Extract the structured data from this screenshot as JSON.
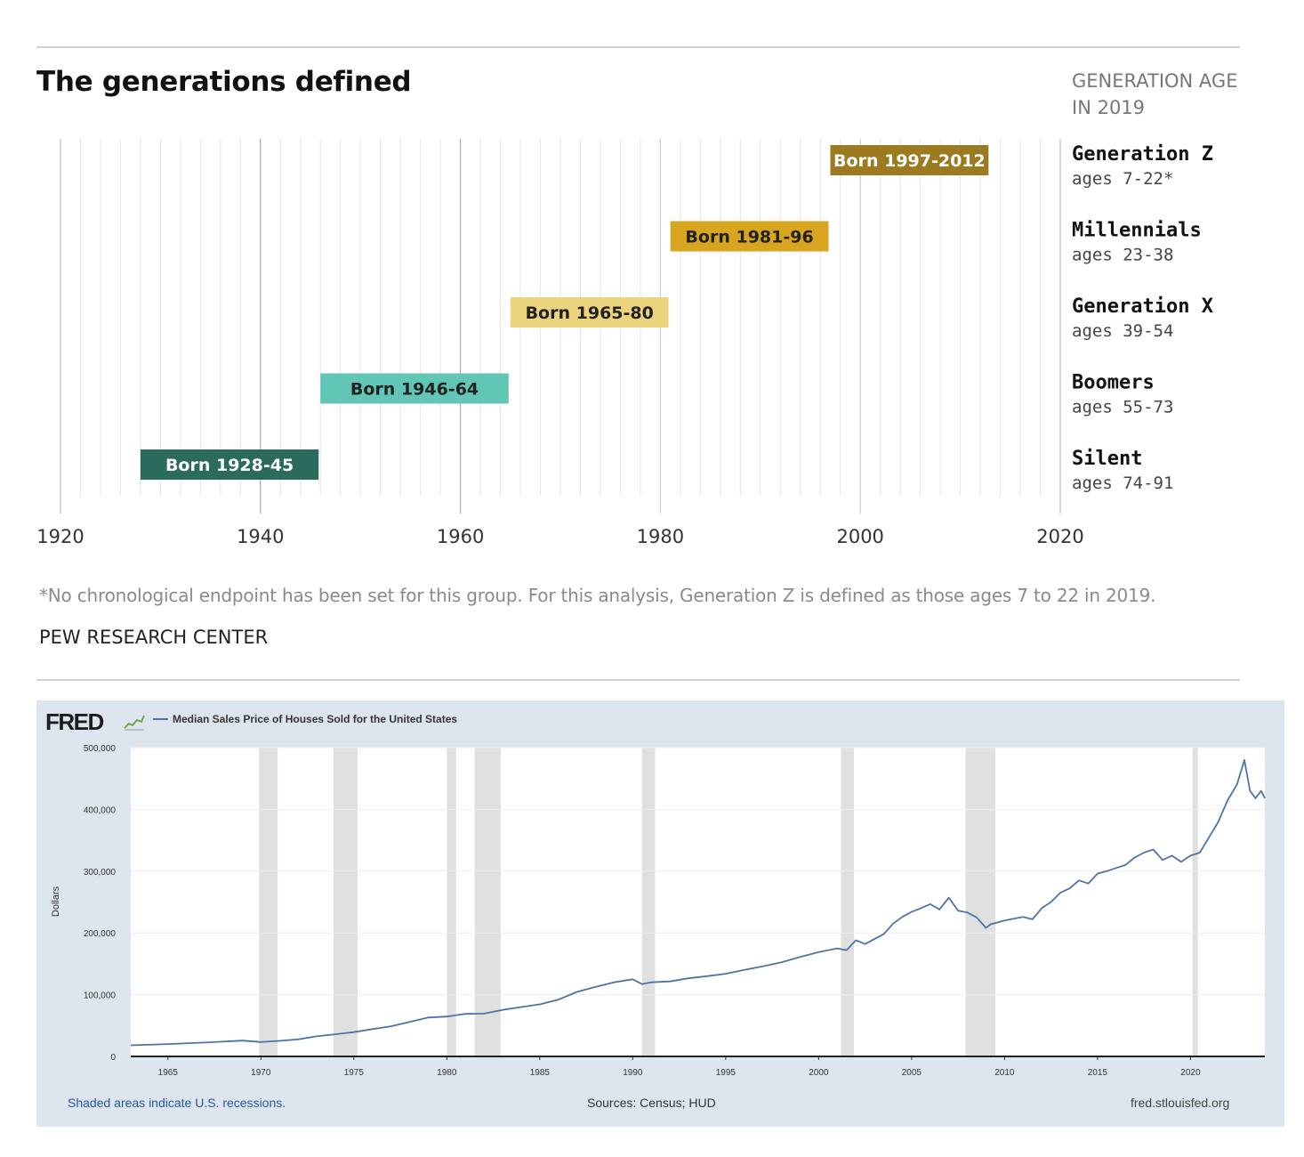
{
  "pew": {
    "title": "The generations defined",
    "age_heading": "GENERATION AGE\nIN 2019",
    "note": "*No chronological endpoint has been set for this group. For this analysis, Generation Z is defined as those ages 7 to 22 in 2019.",
    "source": "PEW RESEARCH CENTER"
  },
  "fred": {
    "logo": "FRED",
    "legend": "Median Sales Price of Houses Sold for the United States",
    "ylabel": "Dollars",
    "footer_left": "Shaded areas indicate U.S. recessions.",
    "footer_center": "Sources: Census; HUD",
    "footer_right": "fred.stlouisfed.org",
    "colors": {
      "panel": "#dde6ee",
      "line": "#4e74a6",
      "recession": "#e0e0e0",
      "link": "#25579e"
    }
  },
  "chart_data": [
    {
      "type": "bar",
      "orientation": "horizontal-range",
      "title": "The generations defined",
      "xlim": [
        1920,
        2020
      ],
      "x_ticks": [
        1920,
        1940,
        1960,
        1980,
        2000,
        2020
      ],
      "grid": true,
      "series": [
        {
          "generation": "Generation Z",
          "ages": "ages 7-22*",
          "label": "Born 1997-2012",
          "start": 1997,
          "end": 2012,
          "color": "#9c7a20",
          "text_color": "#ffffff"
        },
        {
          "generation": "Millennials",
          "ages": "ages 23-38",
          "label": "Born 1981-96",
          "start": 1981,
          "end": 1996,
          "color": "#d8a520",
          "text_color": "#222222"
        },
        {
          "generation": "Generation X",
          "ages": "ages 39-54",
          "label": "Born 1965-80",
          "start": 1965,
          "end": 1980,
          "color": "#ecd37e",
          "text_color": "#222222"
        },
        {
          "generation": "Boomers",
          "ages": "ages 55-73",
          "label": "Born 1946-64",
          "start": 1946,
          "end": 1964,
          "color": "#61c6b6",
          "text_color": "#222222"
        },
        {
          "generation": "Silent",
          "ages": "ages 74-91",
          "label": "Born 1928-45",
          "start": 1928,
          "end": 1945,
          "color": "#2a6b5d",
          "text_color": "#ffffff"
        }
      ]
    },
    {
      "type": "line",
      "legend": [
        "Median Sales Price of Houses Sold for the United States"
      ],
      "xlabel": "",
      "ylabel": "Dollars",
      "xlim": [
        1963,
        2024
      ],
      "ylim": [
        0,
        500000
      ],
      "x_ticks": [
        1965,
        1970,
        1975,
        1980,
        1985,
        1990,
        1995,
        2000,
        2005,
        2010,
        2015,
        2020
      ],
      "y_ticks": [
        0,
        100000,
        200000,
        300000,
        400000,
        500000
      ],
      "y_tick_labels": [
        "0",
        "100,000",
        "200,000",
        "300,000",
        "400,000",
        "500,000"
      ],
      "recessions": [
        [
          1969.9,
          1970.9
        ],
        [
          1973.9,
          1975.2
        ],
        [
          1980.0,
          1980.5
        ],
        [
          1981.5,
          1982.9
        ],
        [
          1990.5,
          1991.2
        ],
        [
          2001.2,
          2001.9
        ],
        [
          2007.9,
          2009.5
        ],
        [
          2020.1,
          2020.4
        ]
      ],
      "series": [
        {
          "name": "Median Sales Price of Houses Sold for the United States",
          "color": "#4e74a6",
          "x": [
            1963.0,
            1965.0,
            1967.0,
            1969.0,
            1970.0,
            1971.0,
            1972.0,
            1973.0,
            1974.0,
            1975.0,
            1976.0,
            1977.0,
            1978.0,
            1979.0,
            1980.0,
            1981.0,
            1982.0,
            1983.0,
            1984.0,
            1985.0,
            1986.0,
            1987.0,
            1988.0,
            1989.0,
            1990.0,
            1990.5,
            1991.0,
            1992.0,
            1993.0,
            1994.0,
            1995.0,
            1996.0,
            1997.0,
            1998.0,
            1999.0,
            2000.0,
            2001.0,
            2001.5,
            2002.0,
            2002.5,
            2003.0,
            2003.5,
            2004.0,
            2004.5,
            2005.0,
            2005.5,
            2006.0,
            2006.5,
            2007.0,
            2007.5,
            2008.0,
            2008.5,
            2009.0,
            2009.25,
            2009.5,
            2010.0,
            2011.0,
            2011.5,
            2012.0,
            2012.5,
            2013.0,
            2013.5,
            2014.0,
            2014.5,
            2015.0,
            2015.5,
            2016.0,
            2016.5,
            2017.0,
            2017.5,
            2018.0,
            2018.5,
            2019.0,
            2019.5,
            2020.0,
            2020.5,
            2021.0,
            2021.5,
            2022.0,
            2022.5,
            2022.9,
            2023.2,
            2023.5,
            2023.8,
            2024.0
          ],
          "y": [
            18000,
            20000,
            22500,
            25600,
            23400,
            25200,
            27600,
            32500,
            35900,
            39300,
            44200,
            48800,
            55700,
            62900,
            64600,
            68900,
            69300,
            75300,
            79900,
            84300,
            92000,
            104500,
            112500,
            120000,
            125000,
            117000,
            120000,
            121500,
            126500,
            130000,
            133900,
            140000,
            146000,
            152500,
            161000,
            169000,
            175000,
            172000,
            188000,
            182000,
            190000,
            198000,
            215000,
            226000,
            234000,
            240000,
            246500,
            238000,
            257000,
            236000,
            233000,
            225000,
            208000,
            214000,
            216000,
            220000,
            226000,
            222000,
            240000,
            250000,
            265000,
            272000,
            285000,
            280000,
            296000,
            300000,
            305000,
            310000,
            322000,
            330000,
            335000,
            318000,
            325000,
            315000,
            325000,
            330000,
            355000,
            380000,
            415000,
            440000,
            480000,
            430000,
            418000,
            430000,
            418000
          ]
        }
      ]
    }
  ]
}
